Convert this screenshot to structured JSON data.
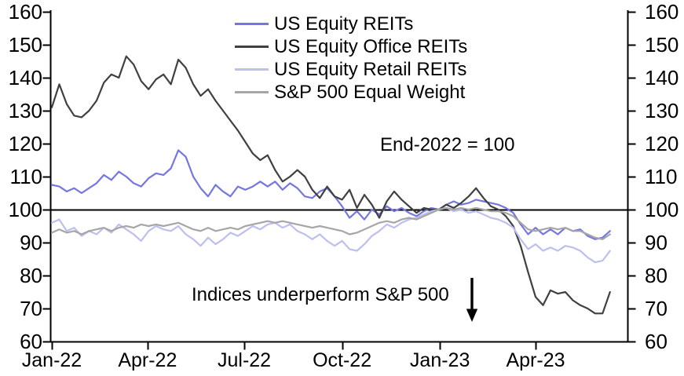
{
  "chart_data": {
    "type": "line",
    "note": "End-2022 = 100",
    "annotation_underperform": "Indices underperform S&P 500",
    "ylim": [
      60,
      160
    ],
    "y_ticks": [
      60,
      70,
      80,
      90,
      100,
      110,
      120,
      130,
      140,
      150,
      160
    ],
    "baseline_value": 100,
    "grid": false,
    "legend_position": "top-center",
    "sample_interval_days": 7,
    "x_ticks": [
      {
        "label": "Jan-22",
        "day": 0
      },
      {
        "label": "Apr-22",
        "day": 90
      },
      {
        "label": "Jul-22",
        "day": 181
      },
      {
        "label": "Oct-22",
        "day": 273
      },
      {
        "label": "Jan-23",
        "day": 365
      },
      {
        "label": "Apr-23",
        "day": 455
      }
    ],
    "series": [
      {
        "name": "US Equity REITs",
        "color": "#7577e0",
        "values": [
          107.5,
          107,
          105.5,
          106.5,
          105,
          106.5,
          108,
          110.5,
          109,
          111.5,
          110,
          108,
          107,
          109.5,
          111,
          110.5,
          112.5,
          118,
          116,
          110,
          106.5,
          104,
          107.5,
          105.5,
          104,
          107,
          106,
          107,
          108.5,
          107,
          108.5,
          106,
          108,
          106.5,
          104,
          103.5,
          105.5,
          106.5,
          104,
          101,
          97.5,
          99.5,
          97,
          100,
          98.5,
          101,
          99.5,
          100.5,
          99,
          98,
          99.5,
          100.5,
          100,
          101.5,
          102.5,
          101.5,
          102,
          103,
          102.5,
          102,
          101.5,
          100.5,
          99,
          95.5,
          92.5,
          94.5,
          92.5,
          94,
          92.5,
          94.5,
          93.5,
          94,
          92,
          91,
          91.5,
          93.5
        ]
      },
      {
        "name": "US Equity Office REITs",
        "color": "#404040",
        "values": [
          131,
          138,
          132,
          128.5,
          128,
          130,
          133,
          138.5,
          141,
          140,
          146.5,
          144,
          139,
          136.5,
          139.5,
          141,
          138,
          145.5,
          143,
          138,
          134.5,
          136.5,
          133,
          130,
          127,
          124,
          120.5,
          117,
          115,
          116.5,
          112,
          108.5,
          110,
          112,
          110,
          106,
          103.5,
          107,
          104,
          103,
          106,
          100.5,
          104.5,
          101.5,
          97.5,
          102.5,
          105.5,
          103,
          101,
          99,
          100.5,
          100,
          100,
          101.5,
          100.5,
          102,
          104,
          106.5,
          103.5,
          101,
          100,
          98,
          95,
          89,
          81,
          73.5,
          71,
          75.5,
          74.5,
          75,
          72.5,
          71,
          70,
          68.5,
          68.5,
          75
        ]
      },
      {
        "name": "US Equity Retail REITs",
        "color": "#bdbfef",
        "values": [
          96,
          97,
          93.5,
          94.5,
          92,
          93.5,
          92.5,
          94.5,
          93,
          95.5,
          94,
          92.5,
          90.5,
          93.5,
          95,
          94,
          93.5,
          95,
          92.5,
          91,
          89,
          91.5,
          89.5,
          91,
          93,
          92,
          93.5,
          95,
          94,
          95.5,
          96,
          94.5,
          95.5,
          93.5,
          92.5,
          91,
          92.5,
          90.5,
          89,
          90.5,
          88,
          87.5,
          89.5,
          92,
          93.5,
          95.5,
          94.5,
          96,
          97,
          97.5,
          98.5,
          99.5,
          100,
          100.5,
          99.5,
          100,
          99,
          99.5,
          98.5,
          97.5,
          97,
          96,
          94.5,
          91,
          88,
          89.5,
          87.5,
          88.5,
          87.5,
          89,
          88.5,
          87.5,
          85.5,
          84,
          84.5,
          87.5
        ]
      },
      {
        "name": "S&P 500 Equal Weight",
        "color": "#a6a6a6",
        "values": [
          93,
          94,
          93,
          93.5,
          92.5,
          93.5,
          94,
          94.5,
          93.5,
          94.5,
          95,
          94.5,
          95.5,
          95,
          95.5,
          95,
          95.5,
          96,
          95,
          94,
          93.5,
          94.5,
          93.5,
          94,
          94.5,
          94,
          95,
          95.5,
          96,
          96.5,
          96,
          96.5,
          96,
          95.5,
          95,
          94.5,
          95,
          94.5,
          94,
          93.5,
          92.5,
          93,
          94,
          95,
          96,
          96.5,
          96,
          97,
          97.5,
          97,
          98,
          99,
          100,
          100.5,
          100,
          100.5,
          100,
          100.5,
          100,
          99.5,
          99.5,
          99,
          98,
          96,
          94,
          93.5,
          94,
          94.5,
          94,
          94.5,
          93.5,
          93.5,
          92.5,
          91.5,
          91,
          92.5
        ]
      }
    ]
  },
  "colors": {
    "axis": "#000000",
    "background": "#ffffff",
    "text": "#000000"
  }
}
